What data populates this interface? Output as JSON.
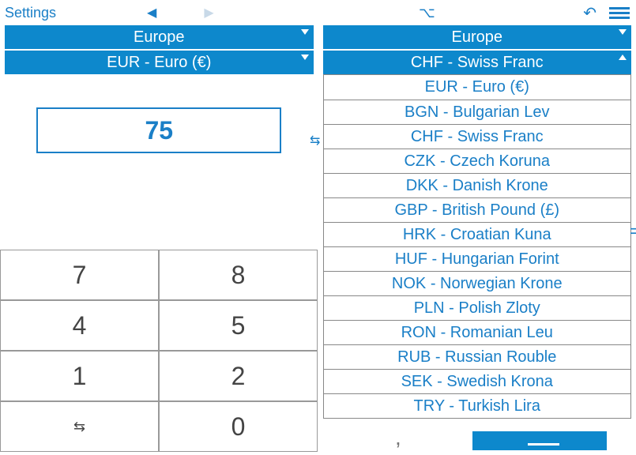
{
  "colors": {
    "primary_blue": "#0d88cc",
    "link_blue": "#1a7fc7",
    "faded_blue": "#c8d9e8",
    "key_text": "#444444",
    "border_gray": "#888888"
  },
  "toolbar": {
    "settings_label": "Settings",
    "back_arrow": "◀",
    "forward_arrow": "▶",
    "option_symbol": "⌥",
    "undo_symbol": "↶"
  },
  "left_panel": {
    "region_label": "Europe",
    "currency_label": "EUR - Euro (€)",
    "input_value": "75"
  },
  "right_panel": {
    "region_label": "Europe",
    "selected_currency": "CHF - Swiss Franc",
    "options": [
      "EUR - Euro (€)",
      "BGN - Bulgarian Lev",
      "CHF - Swiss Franc",
      "CZK - Czech Koruna",
      "DKK - Danish Krone",
      "GBP - British Pound (£)",
      "HRK - Croatian Kuna",
      "HUF - Hungarian Forint",
      "NOK - Norwegian Krone",
      "PLN - Polish Zloty",
      "RON - Romanian Leu",
      "RUB - Russian Rouble",
      "SEK - Swedish Krona",
      "TRY - Turkish Lira"
    ]
  },
  "swap_symbol": "⇆",
  "keypad": {
    "keys": [
      "7",
      "8",
      "4",
      "5",
      "1",
      "2",
      "⇆",
      "0"
    ]
  },
  "partial": {
    "equals": "=",
    "comma": ","
  }
}
